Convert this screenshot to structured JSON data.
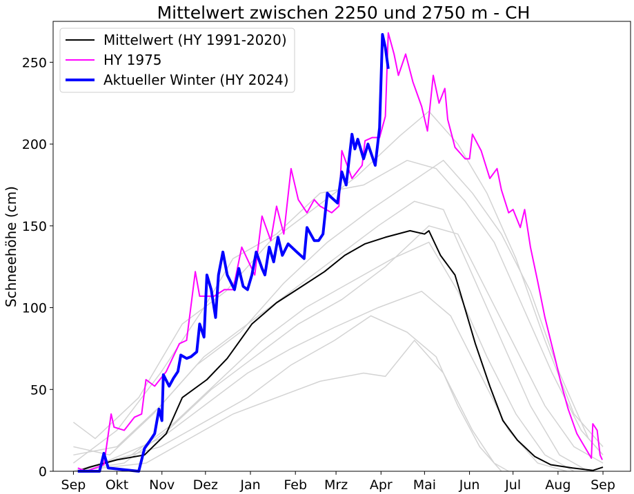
{
  "chart_data": {
    "type": "line",
    "title": "Mittelwert zwischen 2250 und 2750 m  - CH",
    "xlabel": "",
    "ylabel": "Schneehöhe (cm)",
    "x_unit": "days since 1 Sep",
    "xlim": [
      -14,
      384
    ],
    "ylim": [
      0,
      275
    ],
    "grid": false,
    "legend_position": "top-left",
    "x_ticks": [
      {
        "value": 0,
        "label": "Sep"
      },
      {
        "value": 30,
        "label": "Okt"
      },
      {
        "value": 61,
        "label": "Nov"
      },
      {
        "value": 91,
        "label": "Dez"
      },
      {
        "value": 122,
        "label": "Jan"
      },
      {
        "value": 153,
        "label": "Feb"
      },
      {
        "value": 181,
        "label": "Mrz"
      },
      {
        "value": 212,
        "label": "Apr"
      },
      {
        "value": 242,
        "label": "Mai"
      },
      {
        "value": 273,
        "label": "Jun"
      },
      {
        "value": 303,
        "label": "Jul"
      },
      {
        "value": 334,
        "label": "Aug"
      },
      {
        "value": 365,
        "label": "Sep"
      }
    ],
    "y_ticks": [
      0,
      50,
      100,
      150,
      200,
      250
    ],
    "other_years_color": "#d3d3d3",
    "other_years": [
      [
        [
          0,
          0
        ],
        [
          20,
          5
        ],
        [
          60,
          20
        ],
        [
          90,
          40
        ],
        [
          120,
          60
        ],
        [
          150,
          75
        ],
        [
          180,
          88
        ],
        [
          210,
          100
        ],
        [
          240,
          110
        ],
        [
          260,
          95
        ],
        [
          280,
          60
        ],
        [
          300,
          25
        ],
        [
          320,
          5
        ],
        [
          340,
          0
        ]
      ],
      [
        [
          0,
          10
        ],
        [
          30,
          15
        ],
        [
          60,
          40
        ],
        [
          90,
          70
        ],
        [
          120,
          90
        ],
        [
          150,
          110
        ],
        [
          180,
          130
        ],
        [
          210,
          150
        ],
        [
          235,
          165
        ],
        [
          255,
          160
        ],
        [
          275,
          120
        ],
        [
          295,
          80
        ],
        [
          315,
          40
        ],
        [
          335,
          10
        ],
        [
          355,
          0
        ]
      ],
      [
        [
          0,
          0
        ],
        [
          40,
          10
        ],
        [
          70,
          30
        ],
        [
          100,
          55
        ],
        [
          130,
          80
        ],
        [
          160,
          100
        ],
        [
          190,
          115
        ],
        [
          220,
          130
        ],
        [
          245,
          140
        ],
        [
          265,
          110
        ],
        [
          285,
          70
        ],
        [
          305,
          35
        ],
        [
          325,
          10
        ],
        [
          345,
          0
        ]
      ],
      [
        [
          0,
          30
        ],
        [
          15,
          20
        ],
        [
          45,
          45
        ],
        [
          75,
          90
        ],
        [
          105,
          110
        ],
        [
          135,
          140
        ],
        [
          165,
          160
        ],
        [
          195,
          180
        ],
        [
          225,
          205
        ],
        [
          245,
          220
        ],
        [
          265,
          200
        ],
        [
          285,
          170
        ],
        [
          305,
          130
        ],
        [
          325,
          80
        ],
        [
          345,
          35
        ],
        [
          365,
          15
        ]
      ],
      [
        [
          0,
          0
        ],
        [
          50,
          5
        ],
        [
          80,
          20
        ],
        [
          110,
          35
        ],
        [
          140,
          45
        ],
        [
          170,
          55
        ],
        [
          200,
          60
        ],
        [
          215,
          58
        ],
        [
          235,
          80
        ],
        [
          255,
          60
        ],
        [
          275,
          25
        ],
        [
          290,
          5
        ],
        [
          300,
          0
        ]
      ],
      [
        [
          0,
          5
        ],
        [
          30,
          25
        ],
        [
          60,
          60
        ],
        [
          90,
          100
        ],
        [
          110,
          130
        ],
        [
          140,
          145
        ],
        [
          170,
          170
        ],
        [
          200,
          175
        ],
        [
          230,
          190
        ],
        [
          250,
          185
        ],
        [
          270,
          165
        ],
        [
          290,
          140
        ],
        [
          310,
          100
        ],
        [
          330,
          60
        ],
        [
          350,
          25
        ],
        [
          365,
          10
        ]
      ],
      [
        [
          0,
          0
        ],
        [
          35,
          5
        ],
        [
          65,
          25
        ],
        [
          95,
          50
        ],
        [
          125,
          70
        ],
        [
          155,
          90
        ],
        [
          185,
          105
        ],
        [
          215,
          125
        ],
        [
          245,
          150
        ],
        [
          265,
          145
        ],
        [
          285,
          110
        ],
        [
          305,
          75
        ],
        [
          325,
          40
        ],
        [
          345,
          15
        ],
        [
          365,
          5
        ]
      ],
      [
        [
          0,
          15
        ],
        [
          25,
          10
        ],
        [
          55,
          35
        ],
        [
          85,
          65
        ],
        [
          115,
          85
        ],
        [
          145,
          115
        ],
        [
          175,
          140
        ],
        [
          205,
          160
        ],
        [
          230,
          175
        ],
        [
          255,
          190
        ],
        [
          275,
          170
        ],
        [
          295,
          145
        ],
        [
          315,
          110
        ],
        [
          335,
          60
        ],
        [
          355,
          20
        ],
        [
          365,
          10
        ]
      ],
      [
        [
          0,
          0
        ],
        [
          60,
          15
        ],
        [
          90,
          30
        ],
        [
          120,
          45
        ],
        [
          150,
          65
        ],
        [
          180,
          80
        ],
        [
          205,
          95
        ],
        [
          230,
          85
        ],
        [
          250,
          70
        ],
        [
          265,
          40
        ],
        [
          280,
          15
        ],
        [
          295,
          0
        ]
      ]
    ],
    "series": [
      {
        "name": "Mittelwert (HY 1991-2020)",
        "color": "#000000",
        "width": 2,
        "points": [
          [
            3,
            0
          ],
          [
            11,
            2.5
          ],
          [
            30,
            7
          ],
          [
            49,
            10
          ],
          [
            64,
            23
          ],
          [
            75,
            45
          ],
          [
            92,
            56
          ],
          [
            106,
            69
          ],
          [
            123,
            90
          ],
          [
            140,
            103
          ],
          [
            154,
            111
          ],
          [
            173,
            122
          ],
          [
            187,
            132
          ],
          [
            201,
            139
          ],
          [
            215,
            143
          ],
          [
            232,
            147
          ],
          [
            242,
            145
          ],
          [
            245,
            147
          ],
          [
            253,
            132
          ],
          [
            263,
            120
          ],
          [
            270,
            99
          ],
          [
            277,
            78
          ],
          [
            287,
            52
          ],
          [
            296,
            31
          ],
          [
            306,
            19
          ],
          [
            318,
            9
          ],
          [
            329,
            4
          ],
          [
            344,
            2
          ],
          [
            358,
            0.5
          ],
          [
            365,
            2.5
          ]
        ]
      },
      {
        "name": "HY 1975",
        "color": "#ff00ff",
        "width": 2,
        "points": [
          [
            3,
            2
          ],
          [
            9,
            0
          ],
          [
            21,
            4
          ],
          [
            26,
            35
          ],
          [
            28,
            27
          ],
          [
            35,
            25
          ],
          [
            42,
            33
          ],
          [
            47,
            35
          ],
          [
            50,
            56
          ],
          [
            56,
            52
          ],
          [
            64,
            61
          ],
          [
            73,
            78
          ],
          [
            78,
            80
          ],
          [
            84,
            122
          ],
          [
            87,
            107
          ],
          [
            97,
            107
          ],
          [
            104,
            111
          ],
          [
            110,
            111
          ],
          [
            116,
            137
          ],
          [
            125,
            120
          ],
          [
            130,
            156
          ],
          [
            136,
            141
          ],
          [
            140,
            162
          ],
          [
            145,
            145
          ],
          [
            150,
            185
          ],
          [
            155,
            166
          ],
          [
            161,
            158
          ],
          [
            166,
            166
          ],
          [
            170,
            162
          ],
          [
            178,
            158
          ],
          [
            183,
            162
          ],
          [
            185,
            196
          ],
          [
            192,
            179
          ],
          [
            199,
            187
          ],
          [
            201,
            202
          ],
          [
            206,
            204
          ],
          [
            211,
            204
          ],
          [
            215,
            217
          ],
          [
            217,
            268
          ],
          [
            221,
            255
          ],
          [
            224,
            242
          ],
          [
            229,
            255
          ],
          [
            234,
            238
          ],
          [
            240,
            223
          ],
          [
            244,
            208
          ],
          [
            248,
            242
          ],
          [
            252,
            225
          ],
          [
            256,
            234
          ],
          [
            258,
            215
          ],
          [
            263,
            198
          ],
          [
            270,
            191
          ],
          [
            273,
            191
          ],
          [
            275,
            206
          ],
          [
            281,
            196
          ],
          [
            287,
            179
          ],
          [
            292,
            185
          ],
          [
            295,
            172
          ],
          [
            300,
            158
          ],
          [
            303,
            160
          ],
          [
            308,
            149
          ],
          [
            311,
            160
          ],
          [
            315,
            137
          ],
          [
            320,
            116
          ],
          [
            325,
            94
          ],
          [
            332,
            69
          ],
          [
            336,
            54
          ],
          [
            341,
            38
          ],
          [
            347,
            23
          ],
          [
            353,
            14
          ],
          [
            357,
            8
          ],
          [
            358,
            29
          ],
          [
            361,
            25
          ],
          [
            363,
            10
          ],
          [
            364.5,
            7
          ]
        ]
      },
      {
        "name": "Aktueller Winter (HY 2024)",
        "color": "#0000ff",
        "width": 4,
        "points": [
          [
            3,
            0
          ],
          [
            18,
            0
          ],
          [
            21,
            11
          ],
          [
            24,
            2
          ],
          [
            45,
            0
          ],
          [
            49,
            14
          ],
          [
            53,
            19
          ],
          [
            56,
            23
          ],
          [
            59,
            38
          ],
          [
            61,
            31
          ],
          [
            62,
            59
          ],
          [
            66,
            52
          ],
          [
            69,
            57
          ],
          [
            72,
            61
          ],
          [
            74,
            71
          ],
          [
            78,
            69
          ],
          [
            81,
            70
          ],
          [
            85,
            73
          ],
          [
            87,
            90
          ],
          [
            90,
            82
          ],
          [
            92,
            120
          ],
          [
            95,
            111
          ],
          [
            98,
            94
          ],
          [
            100,
            120
          ],
          [
            103,
            134
          ],
          [
            106,
            120
          ],
          [
            111,
            111
          ],
          [
            114,
            124
          ],
          [
            117,
            113
          ],
          [
            120,
            111
          ],
          [
            123,
            120
          ],
          [
            126,
            134
          ],
          [
            130,
            124
          ],
          [
            132,
            120
          ],
          [
            135,
            137
          ],
          [
            138,
            128
          ],
          [
            141,
            143
          ],
          [
            144,
            132
          ],
          [
            148,
            139
          ],
          [
            154,
            134
          ],
          [
            159,
            130
          ],
          [
            161,
            149
          ],
          [
            166,
            141
          ],
          [
            169,
            141
          ],
          [
            172,
            145
          ],
          [
            175,
            170
          ],
          [
            177,
            168
          ],
          [
            182,
            164
          ],
          [
            185,
            183
          ],
          [
            188,
            175
          ],
          [
            192,
            206
          ],
          [
            194,
            197
          ],
          [
            196,
            203
          ],
          [
            200,
            191
          ],
          [
            203,
            200
          ],
          [
            208,
            187
          ],
          [
            211,
            210
          ],
          [
            213,
            267
          ],
          [
            215,
            259
          ],
          [
            217,
            246
          ]
        ]
      }
    ]
  }
}
